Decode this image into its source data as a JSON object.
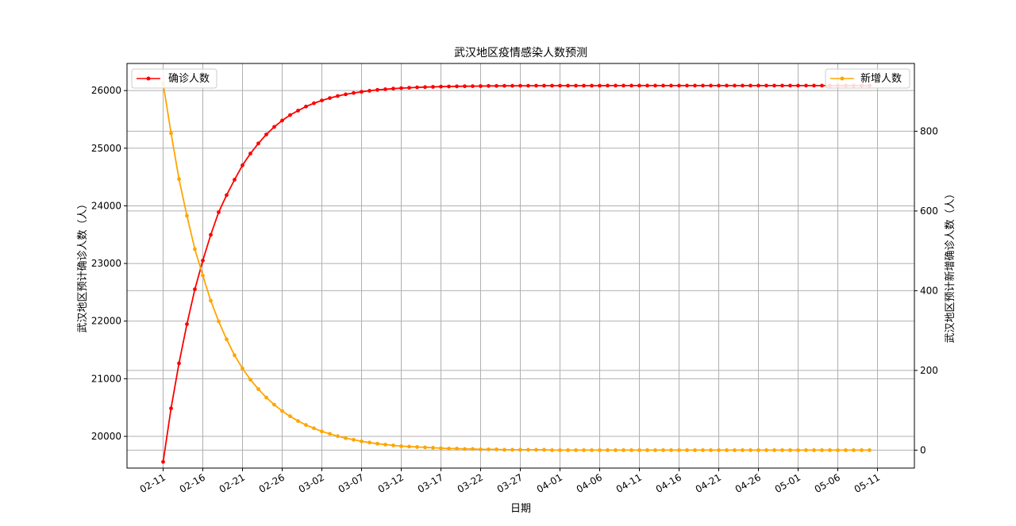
{
  "chart_data": {
    "type": "line",
    "title": "武汉地区疫情感染人数预测",
    "xlabel": "日期",
    "ylabel_left": "武汉地区预计确诊人数（人）",
    "ylabel_right": "武汉地区预计新增确诊人数（人）",
    "ylim_left": [
      19450,
      26470
    ],
    "ylim_right": [
      -45,
      970
    ],
    "yticks_left": [
      20000,
      21000,
      22000,
      23000,
      24000,
      25000,
      26000
    ],
    "yticks_right": [
      0,
      200,
      400,
      600,
      800
    ],
    "xticks": [
      "02-11",
      "02-16",
      "02-21",
      "02-26",
      "03-02",
      "03-07",
      "03-12",
      "03-17",
      "03-22",
      "03-27",
      "04-01",
      "04-06",
      "04-11",
      "04-16",
      "04-21",
      "04-26",
      "05-01",
      "05-06",
      "05-11"
    ],
    "x_start": "2020-02-11",
    "x_end": "2020-05-10",
    "grid": true,
    "series": [
      {
        "name": "确诊人数",
        "axis": "left",
        "color": "#ff0000",
        "legend_position": "upper left",
        "values": [
          19558,
          20487,
          21268,
          21947,
          22553,
          23051,
          23497,
          23890,
          24187,
          24453,
          24704,
          24908,
          25083,
          25238,
          25370,
          25481,
          25575,
          25653,
          25722,
          25780,
          25829,
          25870,
          25905,
          25934,
          25958,
          25979,
          25996,
          26011,
          26023,
          26033,
          26042,
          26049,
          26055,
          26060,
          26064,
          26068,
          26071,
          26073,
          26075,
          26077,
          26078,
          26080,
          26081,
          26082,
          26082,
          26083,
          26083,
          26084,
          26084,
          26084,
          26085,
          26085,
          26085,
          26085,
          26085,
          26085,
          26086,
          26086,
          26086,
          26086,
          26086,
          26086,
          26086,
          26086,
          26086,
          26086,
          26086,
          26086,
          26086,
          26086,
          26086,
          26086,
          26086,
          26086,
          26086,
          26086,
          26086,
          26086,
          26086,
          26086,
          26086,
          26086,
          26086,
          26086,
          26086,
          26086,
          26086,
          26086,
          26086,
          26086
        ]
      },
      {
        "name": "新增人数",
        "axis": "right",
        "color": "#ffa500",
        "legend_position": "upper right",
        "values": [
          920,
          795,
          680,
          588,
          504,
          438,
          375,
          323,
          278,
          238,
          205,
          177,
          153,
          132,
          114,
          98,
          85,
          73,
          63,
          55,
          47,
          41,
          35,
          30,
          26,
          22,
          19,
          16,
          14,
          12,
          10,
          9,
          8,
          7,
          6,
          5,
          4,
          4,
          3,
          3,
          2,
          2,
          2,
          1,
          1,
          1,
          1,
          1,
          1,
          0,
          0,
          0,
          0,
          0,
          0,
          0,
          0,
          0,
          0,
          0,
          0,
          0,
          0,
          0,
          0,
          0,
          0,
          0,
          0,
          0,
          0,
          0,
          0,
          0,
          0,
          0,
          0,
          0,
          0,
          0,
          0,
          0,
          0,
          0,
          0,
          0,
          0,
          0,
          0,
          0
        ]
      }
    ]
  }
}
